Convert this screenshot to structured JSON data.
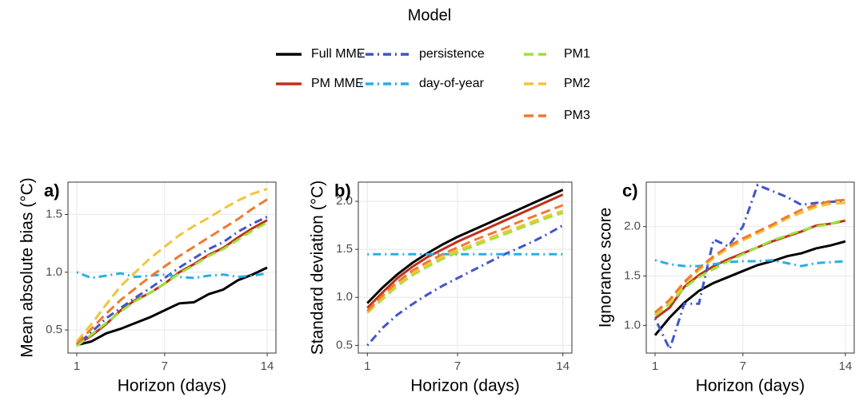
{
  "legend": {
    "title": "Model",
    "entries": [
      {
        "name": "Full MME",
        "color": "#000000",
        "linetype": "solid"
      },
      {
        "name": "PM MME",
        "color": "#c0311a",
        "linetype": "solid"
      },
      {
        "name": "persistence",
        "color": "#3f55c8",
        "linetype": "dotdash"
      },
      {
        "name": "day-of-year",
        "color": "#29aee6",
        "linetype": "dotdash"
      },
      {
        "name": "PM1",
        "color": "#9be33a",
        "linetype": "dashed"
      },
      {
        "name": "PM2",
        "color": "#f0c53a",
        "linetype": "dashed"
      },
      {
        "name": "PM3",
        "color": "#f07a30",
        "linetype": "dashed"
      }
    ]
  },
  "chart_data": [
    {
      "type": "line",
      "tag": "a)",
      "x_label": "Horizon (days)",
      "y_label": "Mean absolute bias (°C)",
      "x": [
        1,
        2,
        3,
        4,
        5,
        6,
        7,
        8,
        9,
        10,
        11,
        12,
        13,
        14
      ],
      "xlim": [
        0.4,
        14.6
      ],
      "xticks": [
        1,
        7,
        14
      ],
      "ylim": [
        0.3,
        1.78
      ],
      "yticks": [
        0.5,
        {
          "value": 1,
          "label": "1.0"
        },
        1.5
      ],
      "grid": true,
      "series": [
        {
          "values": [
            0.37,
            0.4,
            0.47,
            0.51,
            0.56,
            0.61,
            0.67,
            0.73,
            0.74,
            0.81,
            0.85,
            0.93,
            0.98,
            1.04
          ]
        },
        {
          "values": [
            0.37,
            0.45,
            0.55,
            0.67,
            0.76,
            0.82,
            0.9,
            1.0,
            1.07,
            1.15,
            1.21,
            1.3,
            1.38,
            1.45
          ]
        },
        {
          "values": [
            0.37,
            0.48,
            0.6,
            0.69,
            0.78,
            0.86,
            0.95,
            1.04,
            1.12,
            1.2,
            1.26,
            1.35,
            1.42,
            1.48
          ]
        },
        {
          "values": [
            1.0,
            0.95,
            0.97,
            0.99,
            0.96,
            0.97,
            0.98,
            0.96,
            0.95,
            0.97,
            0.98,
            0.96,
            0.97,
            0.99
          ]
        },
        {
          "values": [
            0.36,
            0.46,
            0.56,
            0.66,
            0.75,
            0.82,
            0.9,
            0.99,
            1.06,
            1.14,
            1.2,
            1.28,
            1.36,
            1.43
          ]
        },
        {
          "values": [
            0.4,
            0.55,
            0.72,
            0.88,
            1.0,
            1.12,
            1.22,
            1.32,
            1.4,
            1.47,
            1.55,
            1.62,
            1.68,
            1.72
          ]
        },
        {
          "values": [
            0.38,
            0.51,
            0.64,
            0.76,
            0.86,
            0.96,
            1.05,
            1.14,
            1.22,
            1.3,
            1.38,
            1.46,
            1.55,
            1.63
          ]
        }
      ]
    },
    {
      "type": "line",
      "tag": "b)",
      "x_label": "Horizon (days)",
      "y_label": "Standard deviation (°C)",
      "x": [
        1,
        2,
        3,
        4,
        5,
        6,
        7,
        8,
        9,
        10,
        11,
        12,
        13,
        14
      ],
      "xlim": [
        0.4,
        14.6
      ],
      "xticks": [
        1,
        7,
        14
      ],
      "ylim": [
        0.42,
        2.2
      ],
      "yticks": [
        0.5,
        {
          "value": 1,
          "label": "1.0"
        },
        1.5,
        {
          "value": 2,
          "label": "2.0"
        }
      ],
      "grid": true,
      "series": [
        {
          "values": [
            0.94,
            1.1,
            1.24,
            1.36,
            1.46,
            1.55,
            1.63,
            1.7,
            1.77,
            1.84,
            1.91,
            1.98,
            2.05,
            2.12
          ]
        },
        {
          "values": [
            0.89,
            1.05,
            1.2,
            1.32,
            1.42,
            1.5,
            1.58,
            1.65,
            1.72,
            1.79,
            1.86,
            1.93,
            2.0,
            2.07
          ]
        },
        {
          "values": [
            0.5,
            0.68,
            0.82,
            0.93,
            1.03,
            1.12,
            1.2,
            1.28,
            1.36,
            1.44,
            1.51,
            1.58,
            1.66,
            1.75
          ]
        },
        {
          "values": [
            1.45,
            1.45,
            1.45,
            1.45,
            1.45,
            1.45,
            1.45,
            1.45,
            1.45,
            1.45,
            1.45,
            1.45,
            1.45,
            1.45
          ]
        },
        {
          "values": [
            0.84,
            0.98,
            1.12,
            1.23,
            1.32,
            1.4,
            1.47,
            1.53,
            1.59,
            1.65,
            1.71,
            1.77,
            1.83,
            1.88
          ]
        },
        {
          "values": [
            0.85,
            1.0,
            1.14,
            1.25,
            1.34,
            1.42,
            1.49,
            1.55,
            1.61,
            1.67,
            1.73,
            1.79,
            1.85,
            1.9
          ]
        },
        {
          "values": [
            0.86,
            1.02,
            1.16,
            1.28,
            1.37,
            1.45,
            1.52,
            1.59,
            1.65,
            1.71,
            1.78,
            1.84,
            1.9,
            1.96
          ]
        }
      ]
    },
    {
      "type": "line",
      "tag": "c)",
      "x_label": "Horizon (days)",
      "y_label": "Ignorance score",
      "x": [
        1,
        2,
        3,
        4,
        5,
        6,
        7,
        8,
        9,
        10,
        11,
        12,
        13,
        14
      ],
      "xlim": [
        0.4,
        14.6
      ],
      "xticks": [
        1,
        7,
        14
      ],
      "ylim": [
        0.72,
        2.45
      ],
      "yticks": [
        {
          "value": 1,
          "label": "1.0"
        },
        1.5,
        {
          "value": 2,
          "label": "2.0"
        }
      ],
      "grid": true,
      "series": [
        {
          "values": [
            0.9,
            1.08,
            1.23,
            1.35,
            1.43,
            1.49,
            1.55,
            1.61,
            1.65,
            1.7,
            1.73,
            1.78,
            1.81,
            1.85
          ]
        },
        {
          "values": [
            1.07,
            1.18,
            1.39,
            1.51,
            1.6,
            1.67,
            1.73,
            1.79,
            1.85,
            1.9,
            1.95,
            2.01,
            2.03,
            2.06
          ]
        },
        {
          "values": [
            1.07,
            0.76,
            1.22,
            1.22,
            1.87,
            1.8,
            2.0,
            2.42,
            2.36,
            2.3,
            2.22,
            2.24,
            2.25,
            2.26
          ]
        },
        {
          "values": [
            1.66,
            1.62,
            1.6,
            1.6,
            1.62,
            1.64,
            1.65,
            1.65,
            1.66,
            1.63,
            1.6,
            1.63,
            1.64,
            1.65
          ]
        },
        {
          "values": [
            1.1,
            1.22,
            1.38,
            1.49,
            1.57,
            1.65,
            1.72,
            1.79,
            1.86,
            1.91,
            1.96,
            2.0,
            2.03,
            2.07
          ]
        },
        {
          "values": [
            1.12,
            1.24,
            1.42,
            1.56,
            1.68,
            1.78,
            1.86,
            1.93,
            2.0,
            2.08,
            2.14,
            2.2,
            2.23,
            2.24
          ]
        },
        {
          "values": [
            1.13,
            1.26,
            1.44,
            1.58,
            1.7,
            1.8,
            1.88,
            1.95,
            2.02,
            2.1,
            2.17,
            2.22,
            2.26,
            2.27
          ]
        }
      ]
    }
  ]
}
